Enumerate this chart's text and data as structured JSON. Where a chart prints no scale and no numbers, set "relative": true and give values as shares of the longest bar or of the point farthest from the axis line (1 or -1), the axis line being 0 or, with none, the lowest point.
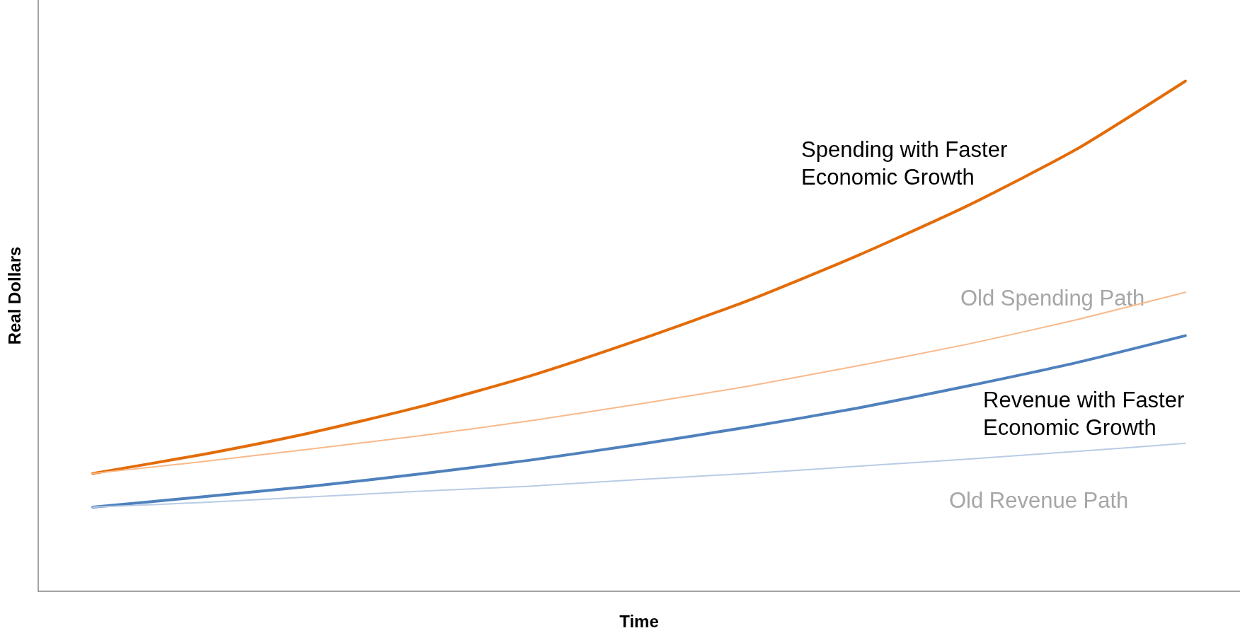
{
  "chart_data": {
    "type": "line",
    "relative": true,
    "xlabel": "Time",
    "ylabel": "Real Dollars",
    "categories": [
      null,
      null,
      null,
      null,
      null,
      null,
      null,
      null,
      null,
      null,
      null
    ],
    "grid": false,
    "legend": false,
    "tick_labels": false,
    "marker": "none",
    "line_style": "solid",
    "series": [
      {
        "name": "Spending with Faster Economic Growth",
        "color": "#e36c09",
        "values": [
          0.231,
          0.268,
          0.311,
          0.362,
          0.422,
          0.493,
          0.57,
          0.658,
          0.755,
          0.866,
          1
        ]
      },
      {
        "name": "Old Spending Path",
        "color": "#f9b98a",
        "values": [
          0.231,
          0.254,
          0.279,
          0.305,
          0.334,
          0.367,
          0.402,
          0.442,
          0.484,
          0.532,
          0.586
        ]
      },
      {
        "name": "Revenue with Faster Economic Growth",
        "color": "#4f81bd",
        "values": [
          0.165,
          0.185,
          0.206,
          0.23,
          0.257,
          0.288,
          0.322,
          0.359,
          0.402,
          0.448,
          0.501
        ]
      },
      {
        "name": "Old Revenue Path",
        "color": "#b8cce4",
        "values": [
          0.165,
          0.174,
          0.185,
          0.196,
          0.206,
          0.219,
          0.231,
          0.245,
          0.259,
          0.274,
          0.29
        ]
      }
    ]
  }
}
